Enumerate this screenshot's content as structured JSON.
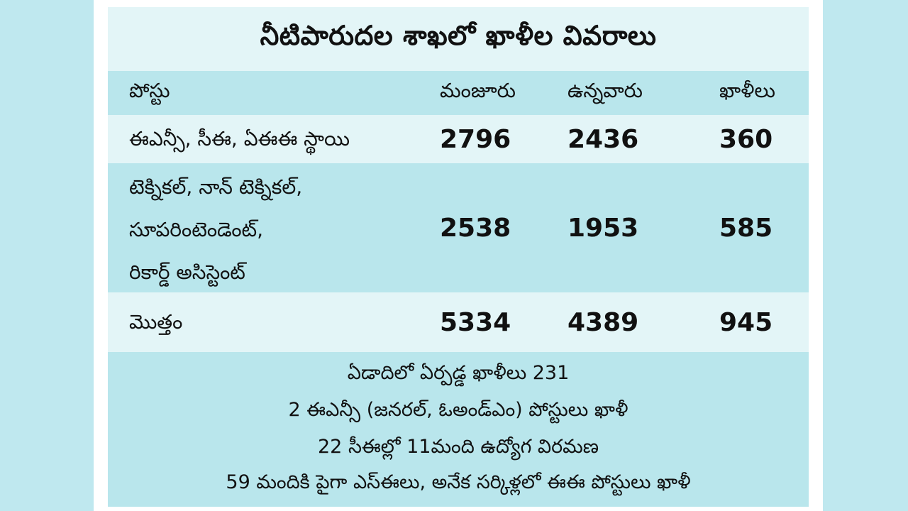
{
  "title": "నీటిపారుదల శాఖలో ఖాళీల వివరాలు",
  "table": {
    "headers": {
      "post": "పోస్టు",
      "sanctioned": "మంజూరు",
      "working": "ఉన్నవారు",
      "vacant": "ఖాళీలు"
    },
    "rows": [
      {
        "post_lines": [
          "ఈఎన్సీ, సీఈ, ఏఈఈ స్థాయి"
        ],
        "sanctioned": "2796",
        "working": "2436",
        "vacant": "360"
      },
      {
        "post_lines": [
          "టెక్నికల్, నాన్ టెక్నికల్,",
          "సూపరింటెండెంట్,",
          "రికార్డ్ అసిస్టెంట్"
        ],
        "sanctioned": "2538",
        "working": "1953",
        "vacant": "585"
      }
    ],
    "total": {
      "label": "మొత్తం",
      "sanctioned": "5334",
      "working": "4389",
      "vacant": "945"
    }
  },
  "notes": [
    "ఏడాదిలో ఏర్పడ్డ ఖాళీలు 231",
    "2 ఈఎన్సీ (జనరల్, ఓఅండ్ఎం) పోస్టులు ఖాళీ",
    "22 సీఈల్లో 11మంది ఉద్యోగ విరమణ",
    "59 మందికి పైగా ఎస్ఈలు, అనేక సర్కిళ్లలో ఈఈ పోస్టులు ఖాళీ"
  ],
  "colors": {
    "background": "#bfe8ef",
    "panel": "#ffffff",
    "light_band": "#e3f5f7",
    "dark_band": "#b9e6ec",
    "text": "#111111"
  }
}
